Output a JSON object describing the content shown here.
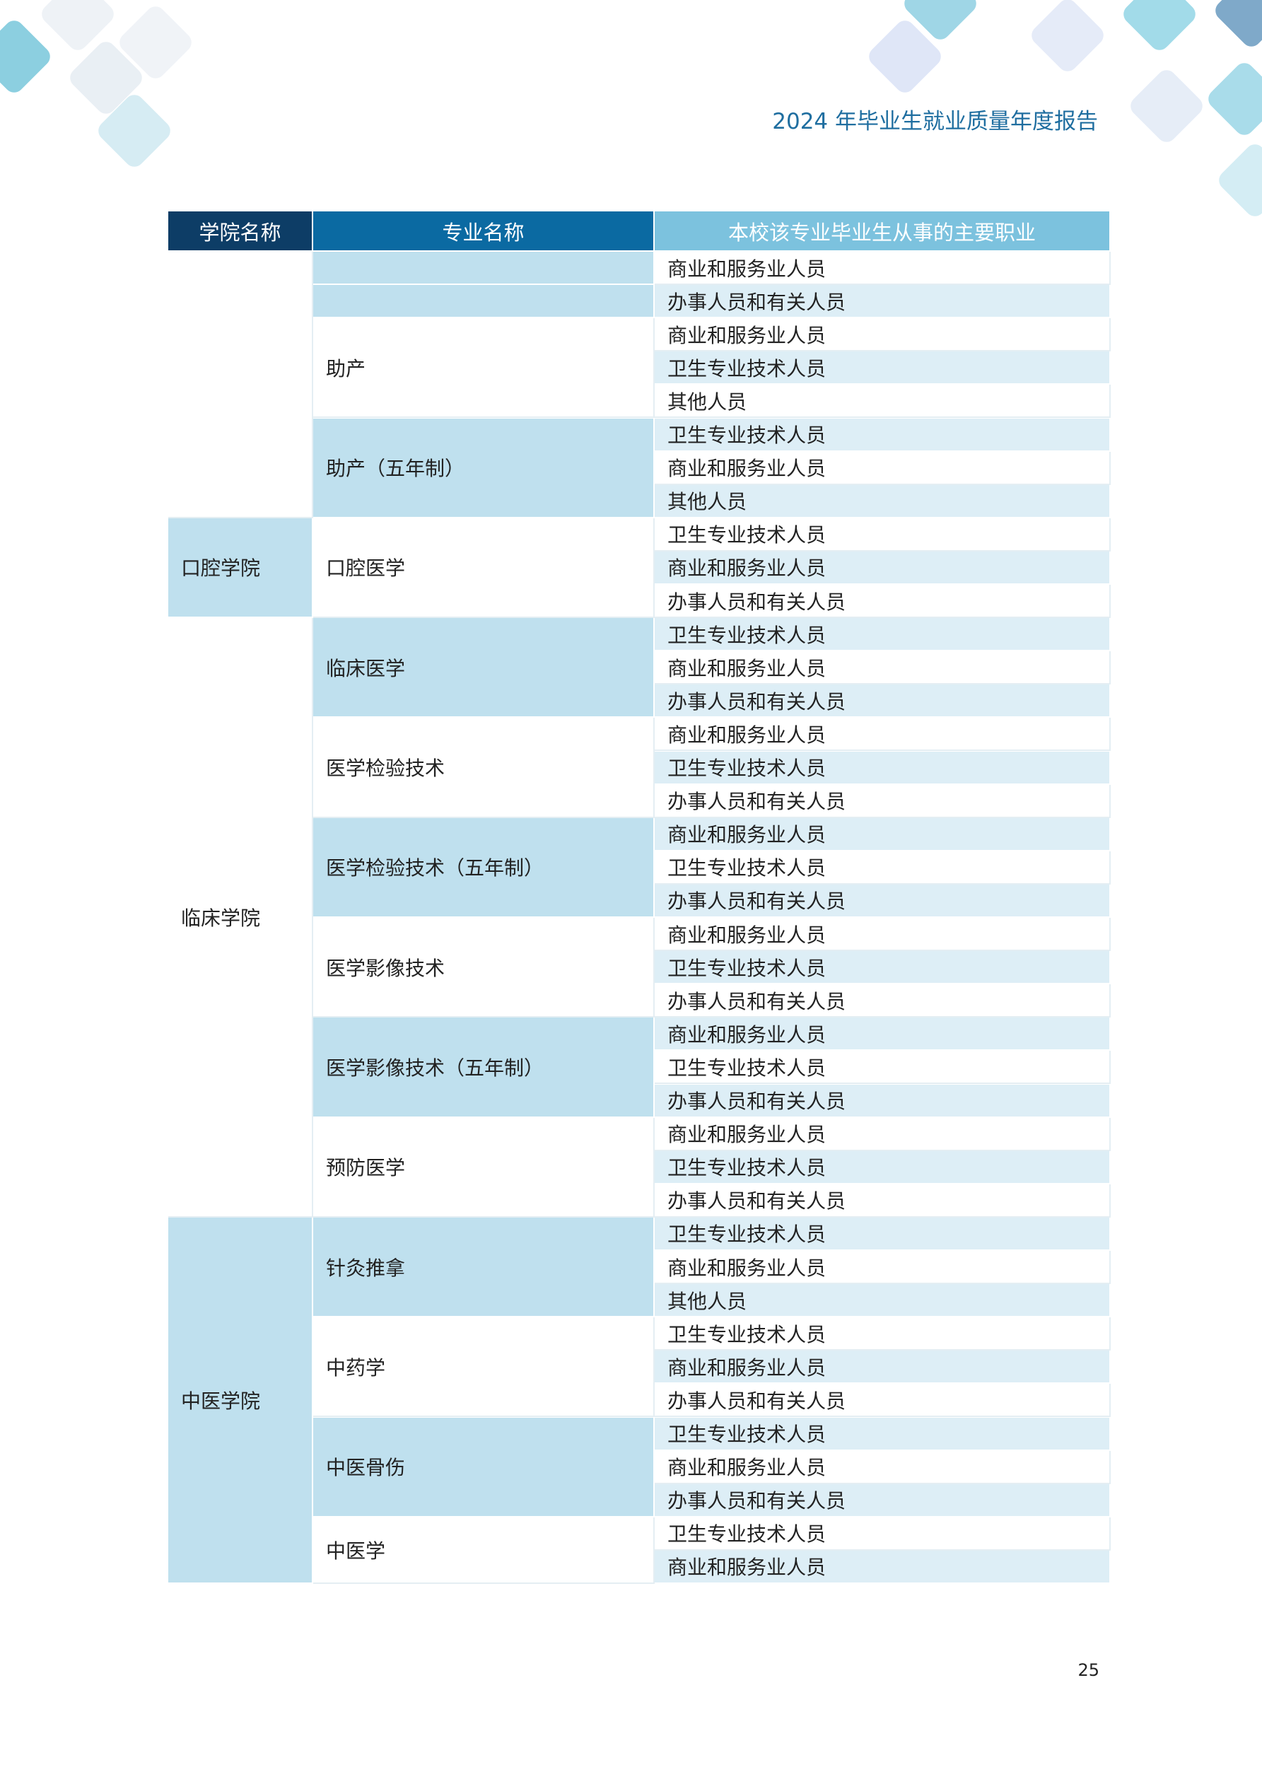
{
  "header": {
    "title": "2024 年毕业生就业质量年度报告"
  },
  "table": {
    "columns": [
      "学院名称",
      "专业名称",
      "本校该专业毕业生从事的主要职业"
    ],
    "groups": [
      {
        "college": null,
        "majors": [
          {
            "name": null,
            "jobs": [
              "商业和服务业人员"
            ]
          },
          {
            "name": null,
            "jobs": [
              "办事人员和有关人员"
            ]
          },
          {
            "name": "助产",
            "jobs": [
              "商业和服务业人员",
              "卫生专业技术人员",
              "其他人员"
            ]
          },
          {
            "name": "助产（五年制）",
            "jobs": [
              "卫生专业技术人员",
              "商业和服务业人员",
              "其他人员"
            ]
          }
        ]
      },
      {
        "college": "口腔学院",
        "majors": [
          {
            "name": "口腔医学",
            "jobs": [
              "卫生专业技术人员",
              "商业和服务业人员",
              "办事人员和有关人员"
            ]
          }
        ]
      },
      {
        "college": "临床学院",
        "majors": [
          {
            "name": "临床医学",
            "jobs": [
              "卫生专业技术人员",
              "商业和服务业人员",
              "办事人员和有关人员"
            ]
          },
          {
            "name": "医学检验技术",
            "jobs": [
              "商业和服务业人员",
              "卫生专业技术人员",
              "办事人员和有关人员"
            ]
          },
          {
            "name": "医学检验技术（五年制）",
            "jobs": [
              "商业和服务业人员",
              "卫生专业技术人员",
              "办事人员和有关人员"
            ]
          },
          {
            "name": "医学影像技术",
            "jobs": [
              "商业和服务业人员",
              "卫生专业技术人员",
              "办事人员和有关人员"
            ]
          },
          {
            "name": "医学影像技术（五年制）",
            "jobs": [
              "商业和服务业人员",
              "卫生专业技术人员",
              "办事人员和有关人员"
            ]
          },
          {
            "name": "预防医学",
            "jobs": [
              "商业和服务业人员",
              "卫生专业技术人员",
              "办事人员和有关人员"
            ]
          }
        ]
      },
      {
        "college": "中医学院",
        "majors": [
          {
            "name": "针灸推拿",
            "jobs": [
              "卫生专业技术人员",
              "商业和服务业人员",
              "其他人员"
            ]
          },
          {
            "name": "中药学",
            "jobs": [
              "卫生专业技术人员",
              "商业和服务业人员",
              "办事人员和有关人员"
            ]
          },
          {
            "name": "中医骨伤",
            "jobs": [
              "卫生专业技术人员",
              "商业和服务业人员",
              "办事人员和有关人员"
            ]
          },
          {
            "name": "中医学",
            "jobs": [
              "卫生专业技术人员",
              "商业和服务业人员"
            ]
          }
        ]
      }
    ]
  },
  "page_number": "25"
}
